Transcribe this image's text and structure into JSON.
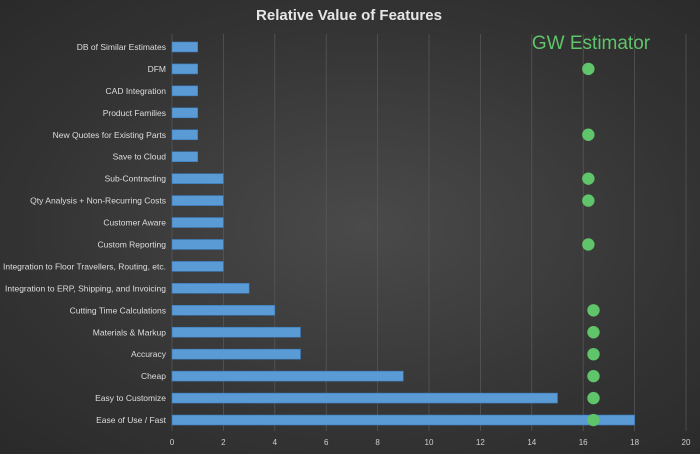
{
  "chart_data": {
    "type": "bar",
    "orientation": "horizontal",
    "title": "Relative Value of Features",
    "categories": [
      "DB of Similar Estimates",
      "DFM",
      "CAD Integration",
      "Product Families",
      "New Quotes for Existing Parts",
      "Save to Cloud",
      "Sub-Contracting",
      "Qty Analysis + Non-Recurring Costs",
      "Customer Aware",
      "Custom Reporting",
      "Integration to Floor Travellers, Routing, etc.",
      "Integration to ERP, Shipping, and Invoicing",
      "Cutting Time Calculations",
      "Materials & Markup",
      "Accuracy",
      "Cheap",
      "Easy to Customize",
      "Ease of Use / Fast"
    ],
    "values": [
      1,
      1,
      1,
      1,
      1,
      1,
      2,
      2,
      2,
      2,
      2,
      3,
      4,
      5,
      5,
      9,
      15,
      18
    ],
    "markers": {
      "name": "GW Estimator",
      "has_feature": [
        false,
        true,
        false,
        false,
        true,
        false,
        true,
        true,
        false,
        true,
        false,
        false,
        true,
        true,
        true,
        true,
        true,
        true
      ],
      "x_values": [
        null,
        16.2,
        null,
        null,
        16.2,
        null,
        16.2,
        16.2,
        null,
        16.2,
        null,
        null,
        16.4,
        16.4,
        16.4,
        16.4,
        16.4,
        16.4
      ]
    },
    "xlim": [
      0,
      20
    ],
    "xticks": [
      0,
      2,
      4,
      6,
      8,
      10,
      12,
      14,
      16,
      18,
      20
    ],
    "grid": true,
    "legend": "top-right",
    "colors": {
      "bar": "#5b9bd5",
      "bar_edge": "#3a78b8",
      "marker": "#5fc46a",
      "legend_text": "#5fc46a",
      "grid": "#5a5a5a"
    }
  }
}
